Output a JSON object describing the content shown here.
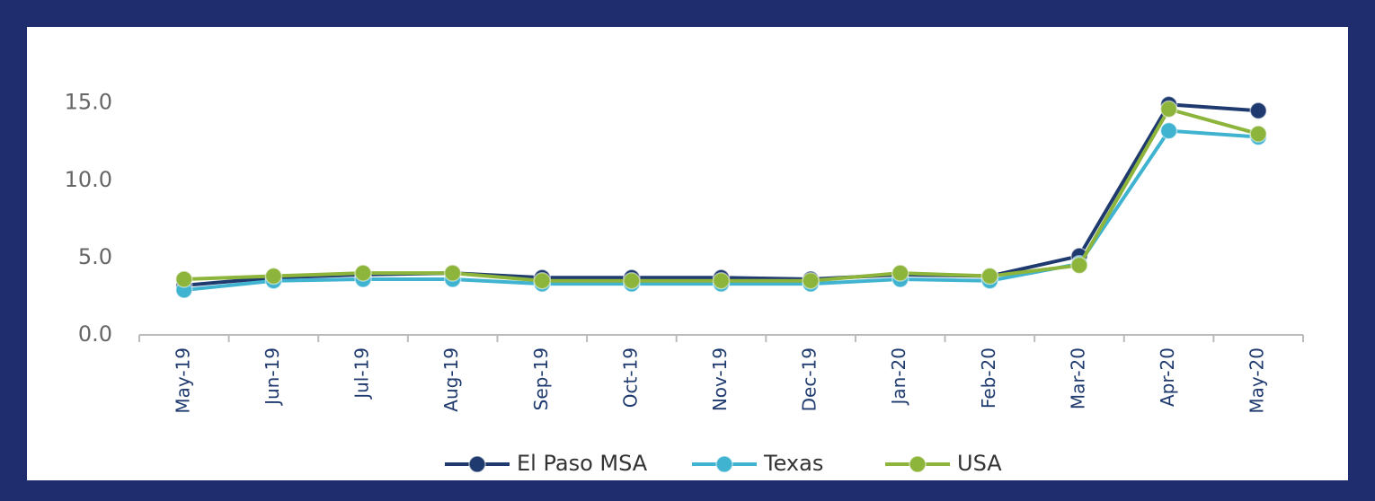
{
  "chart_data": {
    "type": "line",
    "categories": [
      "May-19",
      "Jun-19",
      "Jul-19",
      "Aug-19",
      "Sep-19",
      "Oct-19",
      "Nov-19",
      "Dec-19",
      "Jan-20",
      "Feb-20",
      "Mar-20",
      "Apr-20",
      "May-20"
    ],
    "series": [
      {
        "name": "El Paso MSA",
        "color": "#1f3a6e",
        "values": [
          3.2,
          3.7,
          3.9,
          4.0,
          3.7,
          3.7,
          3.7,
          3.6,
          3.9,
          3.8,
          5.1,
          14.9,
          14.5
        ]
      },
      {
        "name": "Texas",
        "color": "#3fb3d0",
        "values": [
          2.9,
          3.5,
          3.6,
          3.6,
          3.3,
          3.3,
          3.3,
          3.3,
          3.6,
          3.5,
          4.6,
          13.2,
          12.8
        ]
      },
      {
        "name": "USA",
        "color": "#8db43b",
        "values": [
          3.6,
          3.8,
          4.0,
          4.0,
          3.5,
          3.5,
          3.5,
          3.5,
          4.0,
          3.8,
          4.5,
          14.6,
          13.0
        ]
      }
    ],
    "ylim": [
      0,
      18
    ],
    "yticks": [
      {
        "value": 0,
        "label": "0.0"
      },
      {
        "value": 5,
        "label": "5.0"
      },
      {
        "value": 10,
        "label": "10.0"
      },
      {
        "value": 15,
        "label": "15.0"
      }
    ],
    "grid": false,
    "legend": "bottom"
  }
}
